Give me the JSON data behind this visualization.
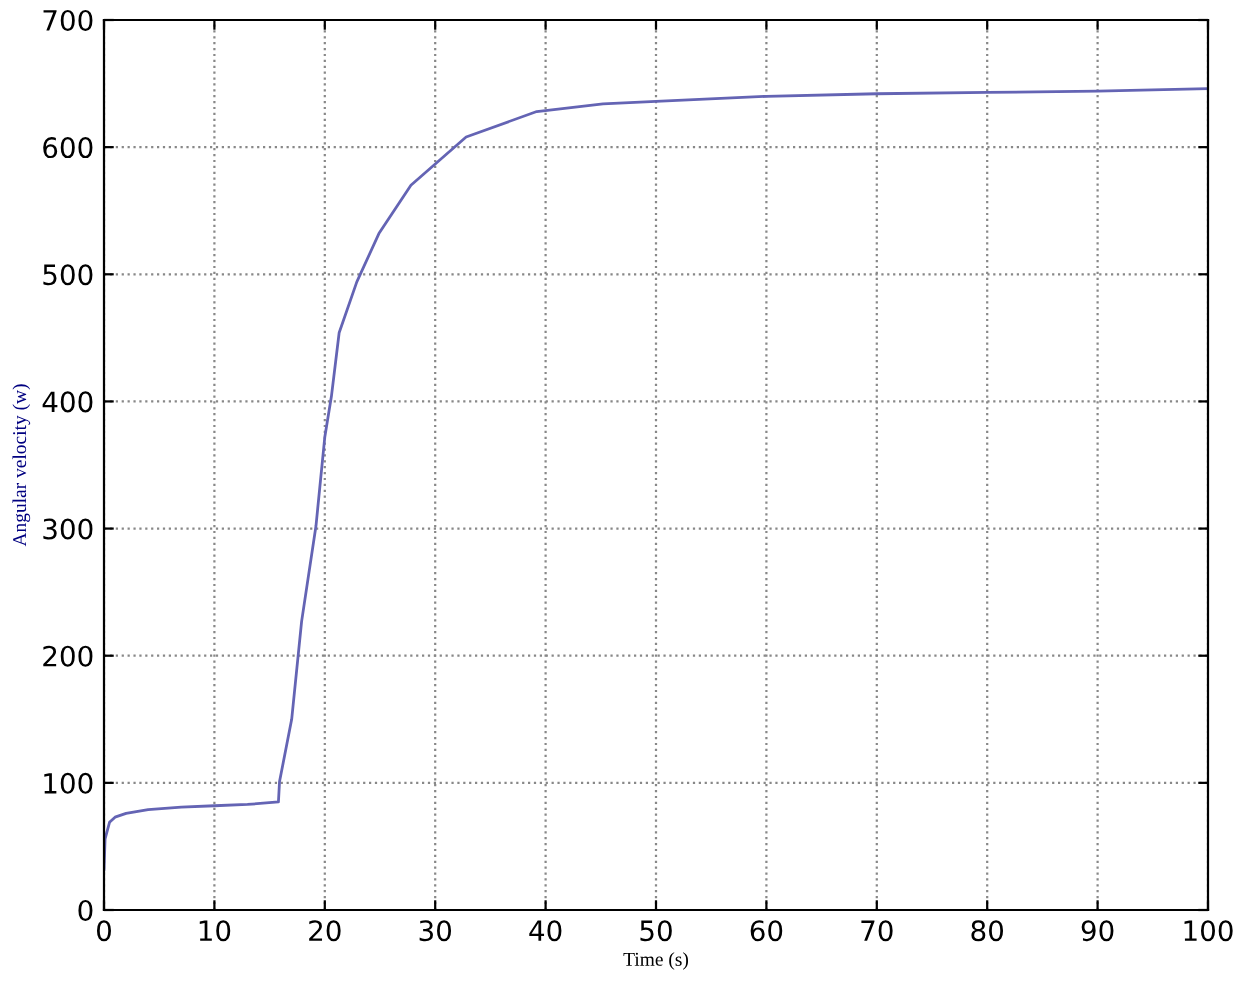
{
  "chart_data": {
    "type": "line",
    "xlabel": "Time (s)",
    "ylabel": "Angular velocity (w)",
    "series": [
      {
        "color": "#6464b4",
        "x": [
          0,
          0.1,
          0.5,
          1,
          2,
          4,
          7,
          10,
          13,
          15.8,
          15.9,
          17,
          17.9,
          19.2,
          20,
          20.6,
          21.3,
          22.9,
          24.9,
          27.8,
          32.8,
          39.2,
          45.2,
          50,
          60,
          70,
          80,
          90,
          100
        ],
        "values": [
          32,
          56,
          69,
          73,
          76,
          79,
          81,
          82,
          83,
          85,
          101,
          150,
          227,
          302,
          372,
          404,
          454,
          494,
          532,
          570,
          608,
          628,
          634,
          636,
          640,
          642,
          643,
          644,
          646
        ]
      }
    ],
    "xlim": [
      0,
      100
    ],
    "ylim": [
      0,
      700
    ],
    "xticks": [
      0,
      10,
      20,
      30,
      40,
      50,
      60,
      70,
      80,
      90,
      100
    ],
    "yticks": [
      0,
      100,
      200,
      300,
      400,
      500,
      600,
      700
    ],
    "grid": true,
    "legend": false,
    "marker": "none",
    "line_style": "solid"
  }
}
